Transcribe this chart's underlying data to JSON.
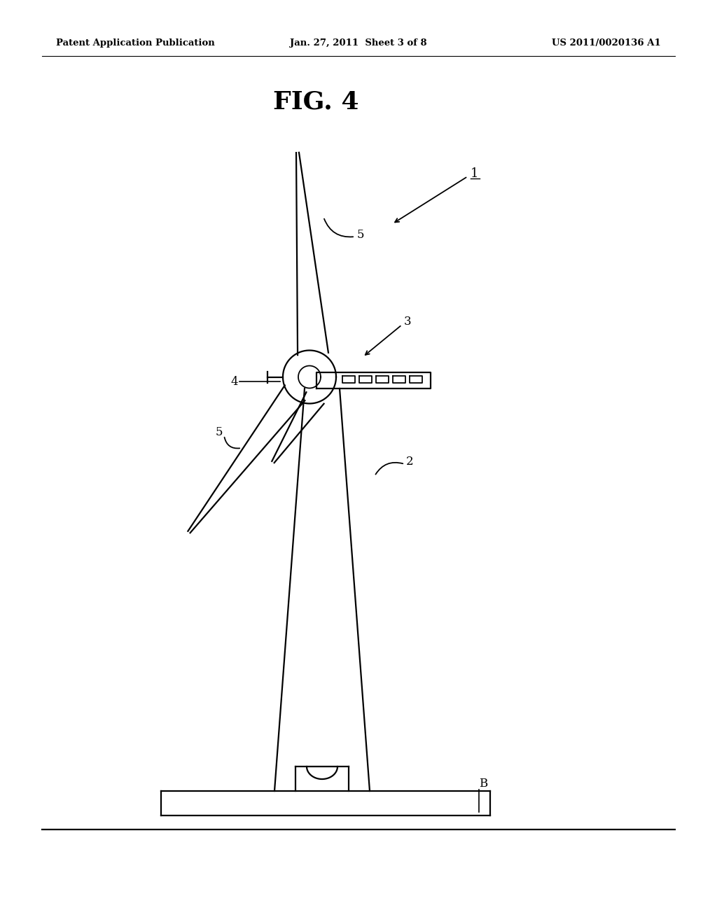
{
  "bg_color": "#ffffff",
  "header_left": "Patent Application Publication",
  "header_mid": "Jan. 27, 2011  Sheet 3 of 8",
  "header_right": "US 2011/0020136 A1",
  "fig_title": "FIG. 4",
  "line_color": "#000000",
  "line_width": 1.6
}
